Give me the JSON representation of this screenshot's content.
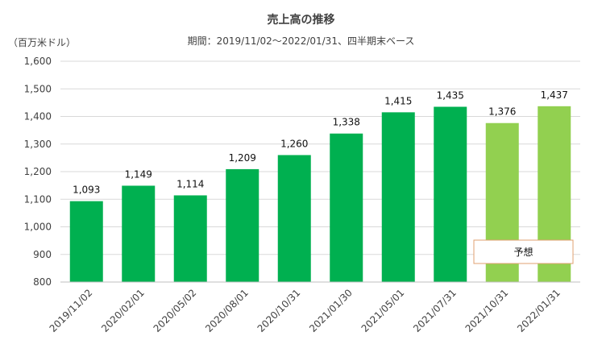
{
  "chart_data": {
    "type": "bar",
    "title": "売上高の推移",
    "subtitle": "期間：2019/11/02～2022/01/31、四半期末ベース",
    "ylabel": "（百万米ドル）",
    "ylim": [
      800,
      1600
    ],
    "yticks": [
      "800",
      "900",
      "1,000",
      "1,100",
      "1,200",
      "1,300",
      "1,400",
      "1,500",
      "1,600"
    ],
    "ytick_values": [
      800,
      900,
      1000,
      1100,
      1200,
      1300,
      1400,
      1500,
      1600
    ],
    "grid": true,
    "categories": [
      "2019/11/02",
      "2020/02/01",
      "2020/05/02",
      "2020/08/01",
      "2020/10/31",
      "2021/01/30",
      "2021/05/01",
      "2021/07/31",
      "2021/10/31",
      "2022/01/31"
    ],
    "values": [
      1093,
      1149,
      1114,
      1209,
      1260,
      1338,
      1415,
      1435,
      1376,
      1437
    ],
    "value_labels": [
      "1,093",
      "1,149",
      "1,114",
      "1,209",
      "1,260",
      "1,338",
      "1,415",
      "1,435",
      "1,376",
      "1,437"
    ],
    "forecast": [
      false,
      false,
      false,
      false,
      false,
      false,
      false,
      false,
      true,
      true
    ],
    "annotation": "予想",
    "colors": {
      "actual": "#00b050",
      "forecast": "#92d050",
      "grid": "#d9d9d9",
      "annotation_border": "#e0a070"
    }
  }
}
